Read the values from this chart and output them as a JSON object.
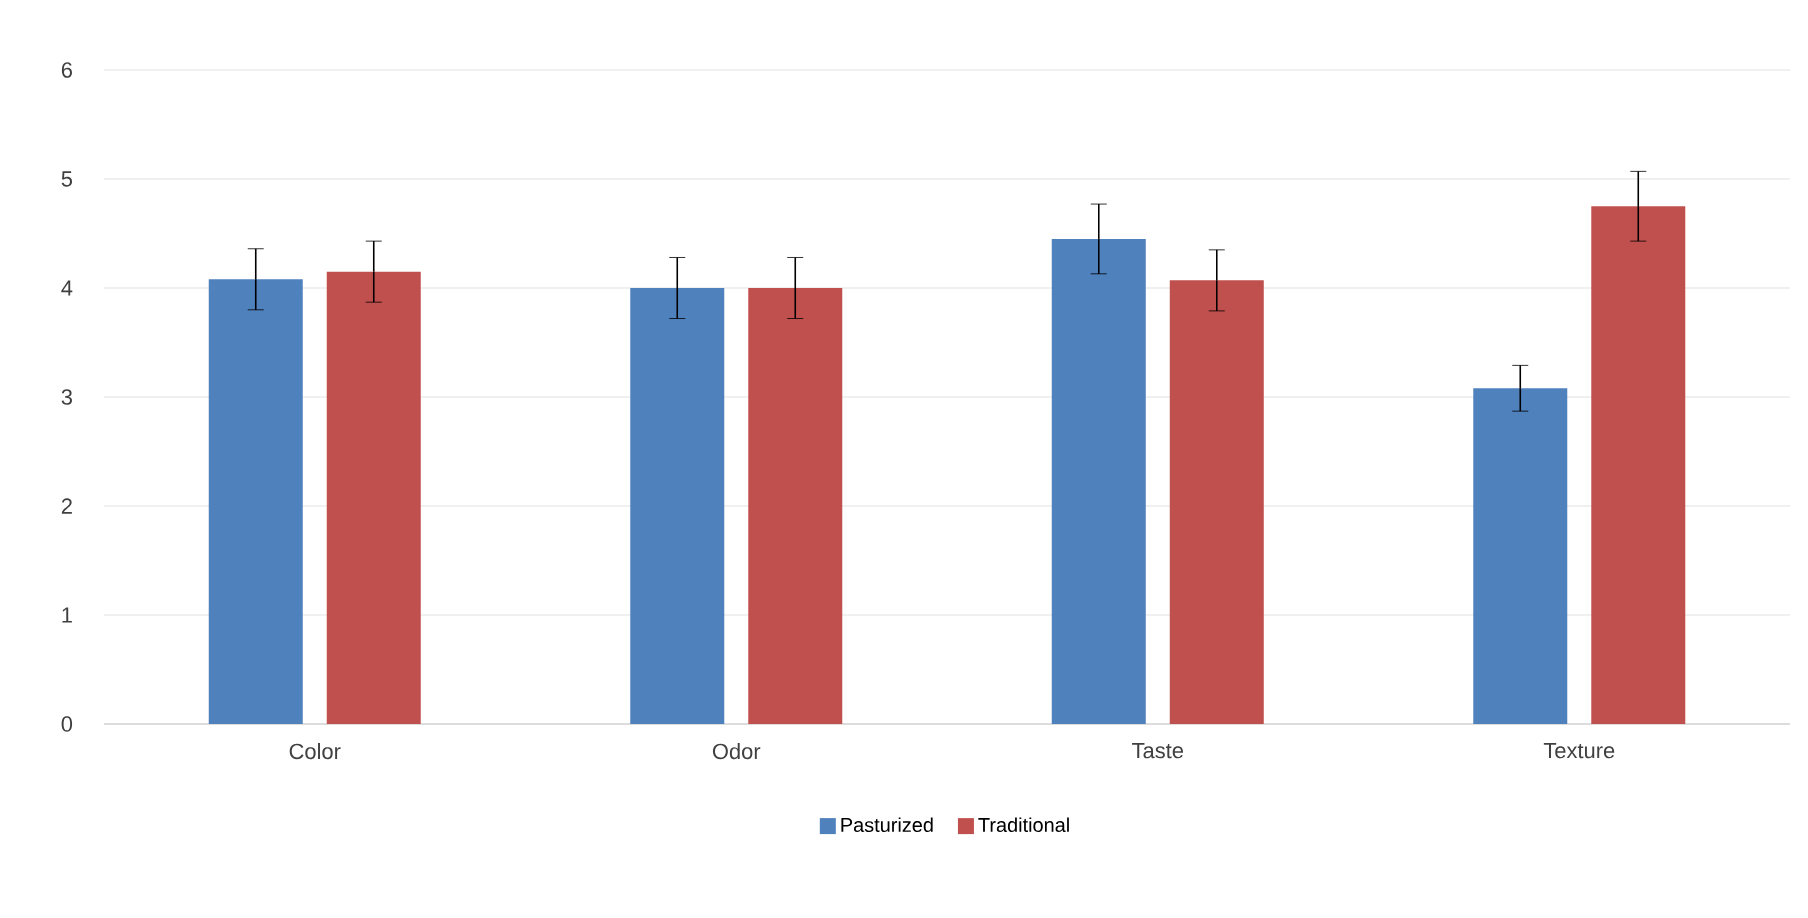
{
  "chart_data": {
    "type": "bar",
    "categories": [
      "Color",
      "Odor",
      "Taste",
      "Texture"
    ],
    "series": [
      {
        "name": "Pasturized",
        "color": "#4f81bd",
        "values": [
          4.08,
          4.0,
          4.45,
          3.08
        ],
        "errors": [
          0.28,
          0.28,
          0.32,
          0.21
        ]
      },
      {
        "name": "Traditional",
        "color": "#c0504d",
        "values": [
          4.15,
          4.0,
          4.07,
          4.75
        ],
        "errors": [
          0.28,
          0.28,
          0.28,
          0.32
        ]
      }
    ],
    "ylim": [
      0,
      6
    ],
    "yticks": [
      0,
      1,
      2,
      3,
      4,
      5,
      6
    ],
    "grid": "y",
    "legend": "bottom"
  }
}
